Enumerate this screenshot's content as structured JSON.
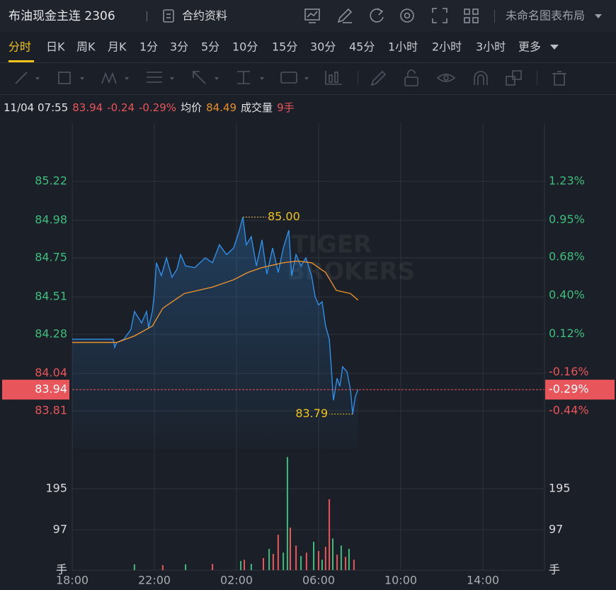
{
  "header": {
    "title": "布油现金主连 2306",
    "contract_info": "合约资料",
    "layout_name": "未命名图表布局"
  },
  "timeframes": {
    "items": [
      "分时",
      "日K",
      "周K",
      "月K",
      "1分",
      "3分",
      "5分",
      "10分",
      "15分",
      "30分",
      "45分",
      "1小时",
      "2小时",
      "3小时",
      "更多"
    ],
    "active": 0
  },
  "quote": {
    "time": "11/04 07:55",
    "price": "83.94",
    "change": "-0.24",
    "change_pct": "-0.29%",
    "avg_label": "均价",
    "avg": "84.49",
    "volume_label": "成交量",
    "volume": "9手"
  },
  "chart_data": {
    "type": "line",
    "xlim": [
      0,
      23
    ],
    "xticks": [
      {
        "value": 0,
        "label": "18:00"
      },
      {
        "value": 4,
        "label": "22:00"
      },
      {
        "value": 8,
        "label": "02:00"
      },
      {
        "value": 12,
        "label": "06:00"
      },
      {
        "value": 16,
        "label": "10:00"
      },
      {
        "value": 20,
        "label": "14:00"
      }
    ],
    "ylim": [
      83.575,
      85.581
    ],
    "yticks": [
      85.22,
      84.98,
      84.75,
      84.51,
      84.28,
      84.04,
      83.81
    ],
    "y2lim": [
      -0.718,
      1.658
    ],
    "y2ticks": [
      {
        "value": 1.23,
        "label": "1.23%"
      },
      {
        "value": 0.95,
        "label": "0.95%"
      },
      {
        "value": 0.68,
        "label": "0.68%"
      },
      {
        "value": 0.4,
        "label": "0.40%"
      },
      {
        "value": 0.12,
        "label": "0.12%"
      },
      {
        "value": -0.16,
        "label": "-0.16%"
      },
      {
        "value": -0.44,
        "label": "-0.44%"
      }
    ],
    "up_color": "#3dbd7d",
    "down_color": "#e8555a",
    "series": [
      {
        "color": "#2f8fe8",
        "x": [
          0,
          2,
          2.07,
          2.17,
          2.52,
          2.86,
          3.03,
          3.38,
          3.62,
          3.72,
          3.9,
          4,
          4.1,
          4.34,
          4.59,
          4.86,
          5.1,
          5.28,
          5.52,
          5.97,
          6.48,
          6.83,
          7.17,
          7.52,
          7.86,
          8.14,
          8.31,
          8.48,
          8.72,
          8.97,
          9.24,
          9.48,
          9.76,
          10.03,
          10.28,
          10.55,
          10.69,
          10.9,
          11.14,
          11.38,
          11.66,
          11.83,
          12,
          12.17,
          12.34,
          12.52,
          12.62,
          12.72,
          12.9,
          13.03,
          13.17,
          13.38,
          13.55,
          13.66,
          13.79,
          13.92
        ],
        "values": [
          84.25,
          84.25,
          84.2,
          84.23,
          84.25,
          84.31,
          84.42,
          84.35,
          84.42,
          84.32,
          84.42,
          84.53,
          84.72,
          84.64,
          84.75,
          84.63,
          84.68,
          84.77,
          84.7,
          84.69,
          84.75,
          84.72,
          84.83,
          84.77,
          84.81,
          84.92,
          85.0,
          84.83,
          84.88,
          84.7,
          84.86,
          84.65,
          84.81,
          84.66,
          84.81,
          84.92,
          84.64,
          84.77,
          84.7,
          84.75,
          84.64,
          84.51,
          84.46,
          84.48,
          84.33,
          84.25,
          84.07,
          83.875,
          84.01,
          83.96,
          84.08,
          84.05,
          83.94,
          83.79,
          83.9,
          83.94
        ]
      },
      {
        "color": "#e8902c",
        "x": [
          0,
          2,
          2.17,
          3.03,
          3.9,
          4.41,
          5.45,
          6.83,
          7.86,
          8.55,
          9.24,
          10.28,
          10.97,
          11.66,
          12.34,
          12.86,
          13.55,
          13.92
        ],
        "values": [
          84.23,
          84.23,
          84.23,
          84.27,
          84.33,
          84.44,
          84.53,
          84.57,
          84.615,
          84.66,
          84.69,
          84.72,
          84.73,
          84.72,
          84.66,
          84.55,
          84.53,
          84.49
        ]
      }
    ],
    "last": 83.94,
    "last_pct": {
      "value": -0.29,
      "label": "-0.29%"
    },
    "last_color": "#e8555a",
    "annotations": [
      {
        "x": 8.31,
        "value": 85.0,
        "label": "85.00"
      },
      {
        "x": 13.66,
        "value": 83.79,
        "label": "83.79"
      }
    ],
    "watermark": [
      "TIGER",
      "BROKERS"
    ],
    "volume": {
      "ylim": [
        0,
        280
      ],
      "yticks": [
        {
          "value": 0,
          "label": "手"
        },
        97,
        195
      ],
      "x": [
        3.03,
        4.41,
        5.52,
        6.83,
        8.21,
        8.38,
        8.72,
        9.31,
        9.59,
        9.79,
        10.03,
        10.28,
        10.48,
        10.62,
        10.9,
        11.14,
        11.41,
        11.76,
        12,
        12.17,
        12.34,
        12.52,
        12.69,
        12.9,
        13.1,
        13.31,
        13.48,
        13.72
      ],
      "values": [
        14,
        12,
        14,
        15,
        22,
        25,
        15,
        29,
        51,
        39,
        85,
        42,
        271,
        102,
        59,
        34,
        42,
        68,
        46,
        25,
        56,
        170,
        76,
        37,
        59,
        32,
        51,
        25
      ],
      "colors": [
        "#3dbd7d",
        "#e8555a",
        "#3dbd7d",
        "#e8555a",
        "#3dbd7d",
        "#e8555a",
        "#3dbd7d",
        "#e8555a",
        "#3dbd7d",
        "#e8555a",
        "#e8555a",
        "#3dbd7d",
        "#3dbd7d",
        "#e8555a",
        "#e8555a",
        "#3dbd7d",
        "#e8555a",
        "#3dbd7d",
        "#e8555a",
        "#3dbd7d",
        "#e8555a",
        "#e8555a",
        "#3dbd7d",
        "#e8555a",
        "#3dbd7d",
        "#e8555a",
        "#3dbd7d",
        "#e8555a"
      ]
    }
  }
}
